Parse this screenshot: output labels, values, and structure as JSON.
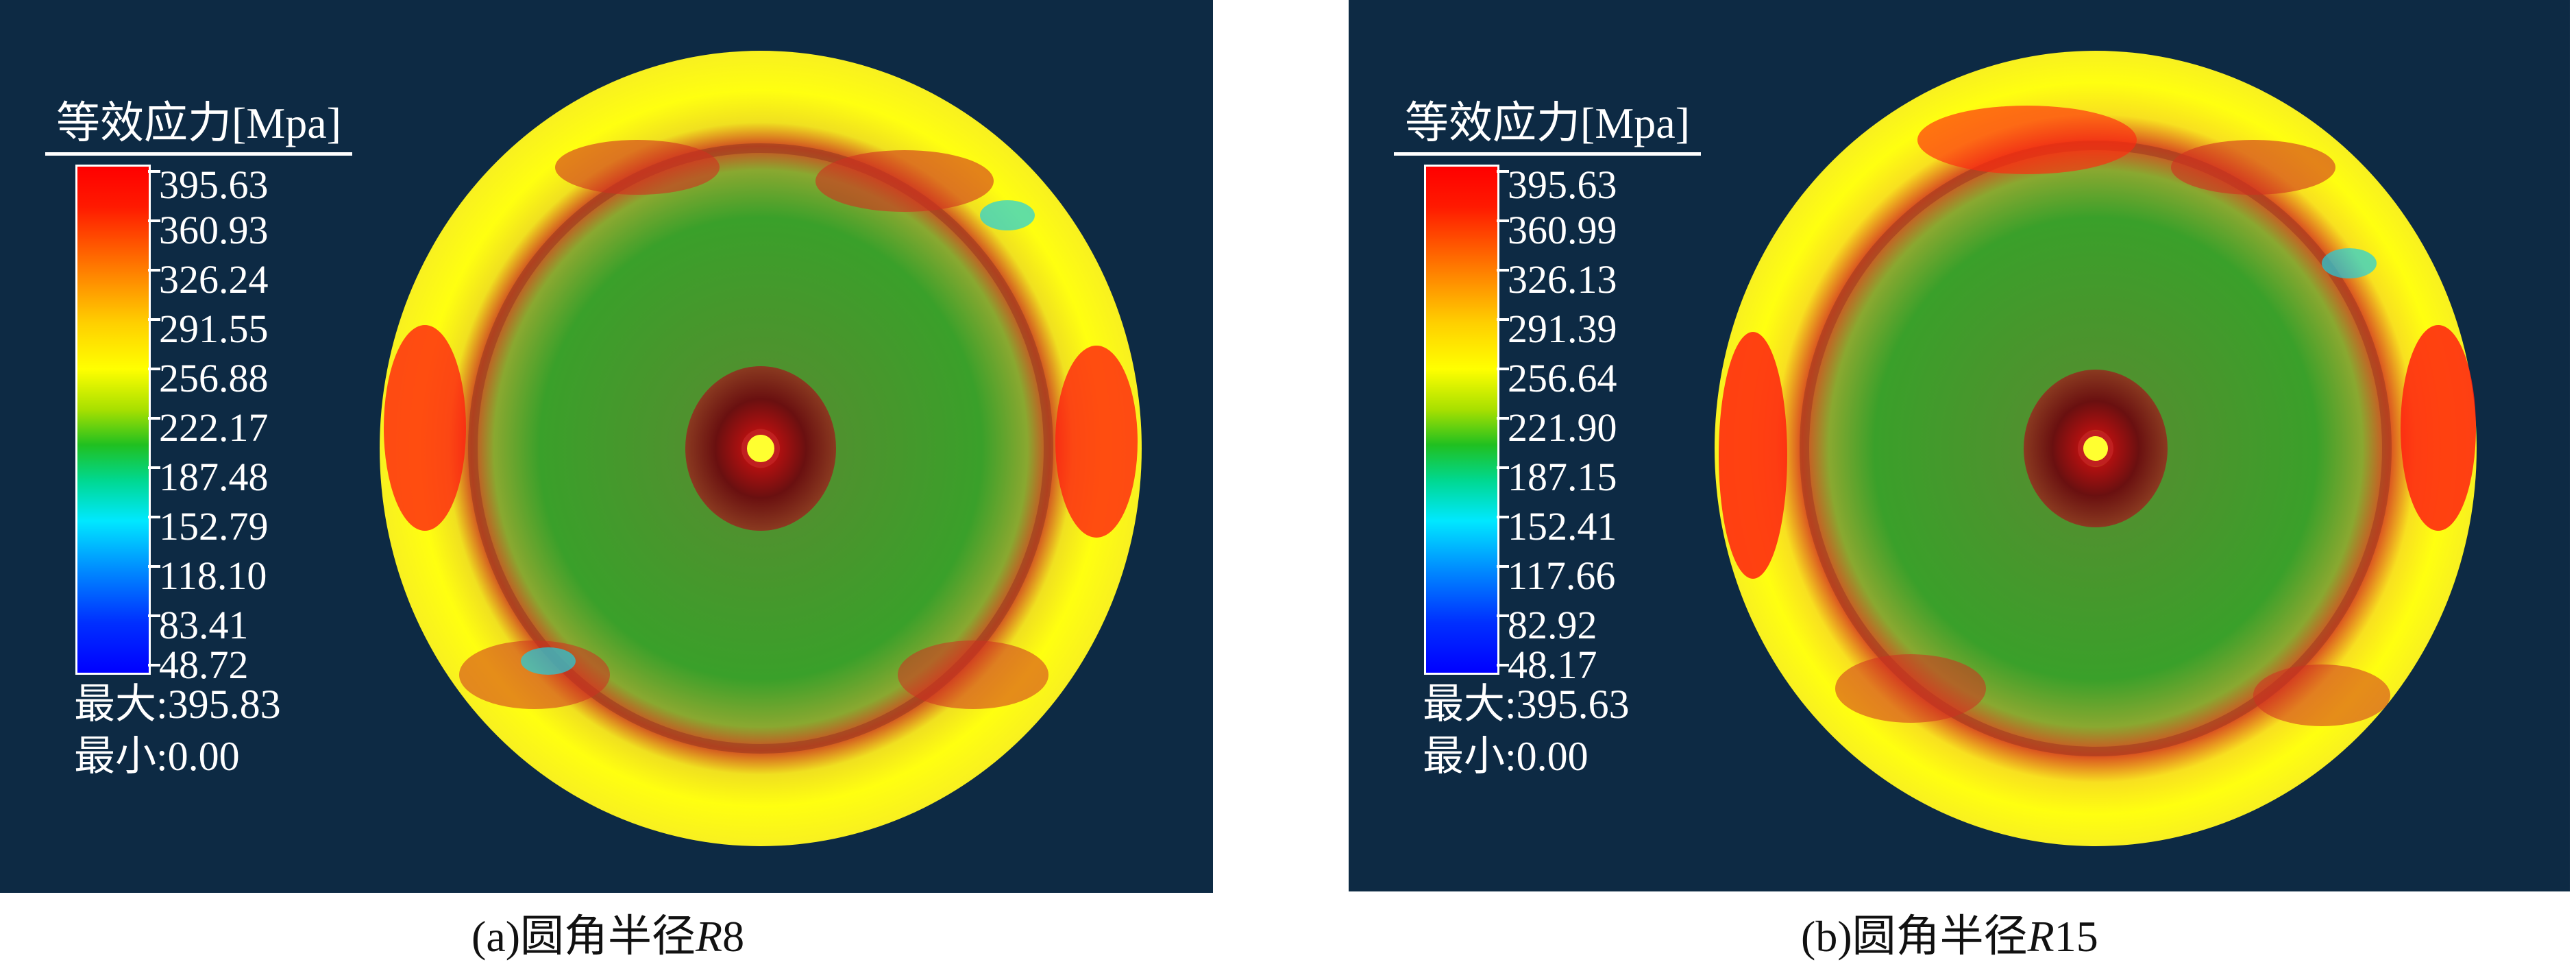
{
  "panels": [
    {
      "legend_title": "等效应力[Mpa]",
      "ticks": [
        "395.63",
        "360.93",
        "326.24",
        "291.55",
        "256.88",
        "222.17",
        "187.48",
        "152.79",
        "118.10",
        "83.41",
        "48.72"
      ],
      "max_label": "最大:395.83",
      "min_label": "最小:0.00",
      "caption_prefix": "(a)圆角半径",
      "caption_var": "R",
      "caption_suffix": "8"
    },
    {
      "legend_title": "等效应力[Mpa]",
      "ticks": [
        "395.63",
        "360.99",
        "326.13",
        "291.39",
        "256.64",
        "221.90",
        "187.15",
        "152.41",
        "117.66",
        "82.92",
        "48.17"
      ],
      "max_label": "最大:395.63",
      "min_label": "最小:0.00",
      "caption_prefix": "(b)圆角半径",
      "caption_var": "R",
      "caption_suffix": "15"
    }
  ],
  "colors": {
    "background": "#0d2a44",
    "high": "#ff0000",
    "mid_high": "#ffff00",
    "mid": "#20c020",
    "low": "#00e8ff",
    "min": "#0000ff"
  }
}
